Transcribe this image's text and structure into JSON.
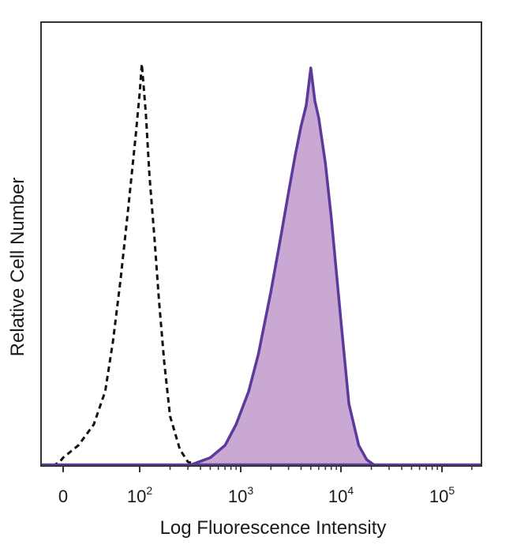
{
  "chart_data": {
    "type": "area",
    "title": "",
    "xlabel": "Log Fluorescence Intensity",
    "ylabel": "Relative Cell Number",
    "x_scale": "biexponential (log above 10^2)",
    "xlim": [
      -100,
      250000
    ],
    "ylim": [
      0,
      1.0
    ],
    "grid": false,
    "x_ticks": [
      {
        "value": 0,
        "base": "0",
        "exp": ""
      },
      {
        "value": 100,
        "base": "10",
        "exp": "2"
      },
      {
        "value": 1000,
        "base": "10",
        "exp": "3"
      },
      {
        "value": 10000,
        "base": "10",
        "exp": "4"
      },
      {
        "value": 100000,
        "base": "10",
        "exp": "5"
      }
    ],
    "series": [
      {
        "style": "dashed",
        "color": "#111111",
        "fill": "none",
        "x": [
          -60,
          -20,
          0,
          20,
          40,
          55,
          65,
          75,
          85,
          95,
          100,
          105,
          115,
          125,
          140,
          155,
          175,
          200,
          250,
          300,
          400
        ],
        "y": [
          0.0,
          0.01,
          0.02,
          0.05,
          0.1,
          0.18,
          0.3,
          0.45,
          0.62,
          0.8,
          0.9,
          0.97,
          0.85,
          0.7,
          0.55,
          0.4,
          0.25,
          0.12,
          0.04,
          0.01,
          0.0
        ]
      },
      {
        "style": "solid",
        "color": "#5b3a9c",
        "fill": "#c9a8d4",
        "x": [
          300,
          500,
          700,
          900,
          1200,
          1500,
          2000,
          2500,
          3000,
          3500,
          4000,
          4500,
          5000,
          5500,
          6000,
          7000,
          8000,
          10000,
          12000,
          15000,
          18000,
          22000
        ],
        "y": [
          0.0,
          0.02,
          0.05,
          0.1,
          0.18,
          0.27,
          0.42,
          0.55,
          0.66,
          0.75,
          0.82,
          0.87,
          0.96,
          0.88,
          0.84,
          0.73,
          0.6,
          0.35,
          0.15,
          0.05,
          0.015,
          0.0
        ]
      }
    ]
  }
}
